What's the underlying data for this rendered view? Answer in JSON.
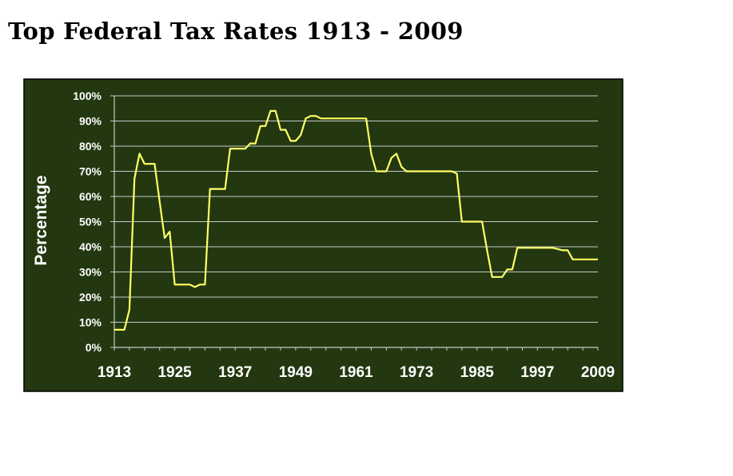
{
  "title": "Top Federal Tax Rates 1913 - 2009",
  "colors": {
    "plot_background": "#233810",
    "line": "#ffff66",
    "gridline": "#c8c8c8",
    "axis_text": "#ffffff",
    "frame_border": "#000000"
  },
  "chart_data": {
    "type": "line",
    "title": "Top Federal Tax Rates 1913 - 2009",
    "xlabel": "",
    "ylabel": "Percentage",
    "xlim": [
      1913,
      2009
    ],
    "ylim": [
      0,
      100
    ],
    "grid": true,
    "legend": "none",
    "x_ticks": [
      "1913",
      "1925",
      "1937",
      "1949",
      "1961",
      "1973",
      "1985",
      "1997",
      "2009"
    ],
    "y_ticks": [
      "0%",
      "10%",
      "20%",
      "30%",
      "40%",
      "50%",
      "60%",
      "70%",
      "80%",
      "90%",
      "100%"
    ],
    "series": [
      {
        "x": [
          1913,
          1914,
          1915,
          1916,
          1917,
          1918,
          1919,
          1920,
          1921,
          1922,
          1923,
          1924,
          1925,
          1926,
          1927,
          1928,
          1929,
          1930,
          1931,
          1932,
          1933,
          1934,
          1935,
          1936,
          1937,
          1938,
          1939,
          1940,
          1941,
          1942,
          1943,
          1944,
          1945,
          1946,
          1947,
          1948,
          1949,
          1950,
          1951,
          1952,
          1953,
          1954,
          1955,
          1956,
          1957,
          1958,
          1959,
          1960,
          1961,
          1962,
          1963,
          1964,
          1965,
          1966,
          1967,
          1968,
          1969,
          1970,
          1971,
          1972,
          1973,
          1974,
          1975,
          1976,
          1977,
          1978,
          1979,
          1980,
          1981,
          1982,
          1983,
          1984,
          1985,
          1986,
          1987,
          1988,
          1989,
          1990,
          1991,
          1992,
          1993,
          1994,
          1995,
          1996,
          1997,
          1998,
          1999,
          2000,
          2001,
          2002,
          2003,
          2004,
          2005,
          2006,
          2007,
          2008,
          2009
        ],
        "values": [
          7,
          7,
          7,
          15,
          67,
          77,
          73,
          73,
          73,
          58,
          43.5,
          46,
          25,
          25,
          25,
          25,
          24,
          25,
          25,
          63,
          63,
          63,
          63,
          79,
          79,
          79,
          79,
          81.1,
          81,
          88,
          88,
          94,
          94,
          86.5,
          86.5,
          82.1,
          82.1,
          84.4,
          91,
          92,
          92,
          91,
          91,
          91,
          91,
          91,
          91,
          91,
          91,
          91,
          91,
          77,
          70,
          70,
          70,
          75.3,
          77,
          71.8,
          70,
          70,
          70,
          70,
          70,
          70,
          70,
          70,
          70,
          70,
          69.1,
          50,
          50,
          50,
          50,
          50,
          38.5,
          28,
          28,
          28,
          31,
          31,
          39.6,
          39.6,
          39.6,
          39.6,
          39.6,
          39.6,
          39.6,
          39.6,
          39.1,
          38.6,
          38.6,
          35,
          35,
          35,
          35,
          35,
          35
        ]
      }
    ]
  }
}
